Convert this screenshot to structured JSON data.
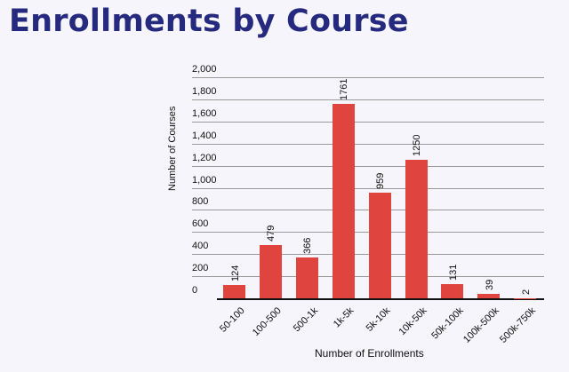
{
  "header": {
    "title": "Enrollments by Course"
  },
  "chart_data": {
    "type": "bar",
    "title": "Enrollments by Course",
    "xlabel": "Number of Enrollments",
    "ylabel": "Number of Courses",
    "categories": [
      "50-100",
      "100-500",
      "500-1k",
      "1k-5k",
      "5k-10k",
      "10k-50k",
      "50k-100k",
      "100k-500k",
      "500k-750k"
    ],
    "values": [
      124,
      479,
      366,
      1761,
      959,
      1250,
      131,
      39,
      2
    ],
    "data_labels": [
      "124",
      "479",
      "366",
      "1761",
      "959",
      "1250",
      "131",
      "39",
      "2"
    ],
    "ylim": [
      0,
      2000
    ],
    "yticks": [
      "0",
      "200",
      "400",
      "600",
      "800",
      "1,000",
      "1,200",
      "1,400",
      "1,600",
      "1,800",
      "2,000"
    ],
    "grid": true,
    "legend": "none",
    "bar_color": "#e0443e",
    "title_color": "#262a7e"
  }
}
